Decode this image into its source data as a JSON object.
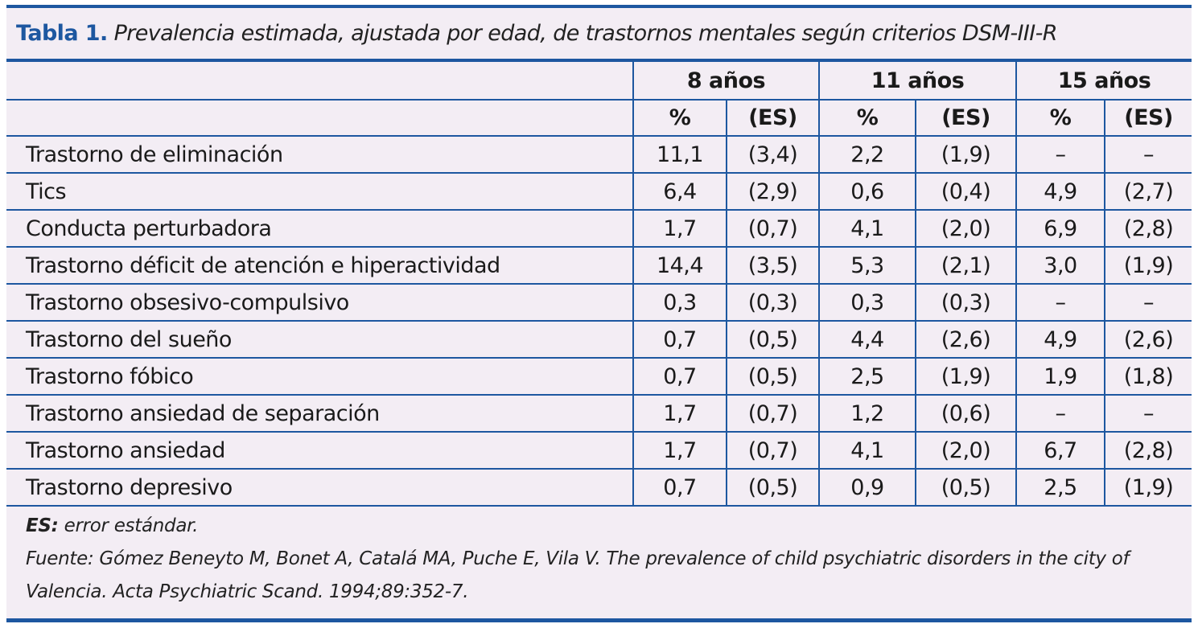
{
  "title": {
    "label": "Tabla 1.",
    "caption": "Prevalencia estimada, ajustada por edad, de trastornos mentales según criterios DSM-III-R"
  },
  "groups": [
    "8 años",
    "11 años",
    "15 años"
  ],
  "subheaders": [
    "%",
    "(ES)",
    "%",
    "(ES)",
    "%",
    "(ES)"
  ],
  "rows": [
    {
      "label": "Trastorno de eliminación",
      "values": [
        "11,1",
        "(3,4)",
        "2,2",
        "(1,9)",
        "–",
        "–"
      ]
    },
    {
      "label": "Tics",
      "values": [
        "6,4",
        "(2,9)",
        "0,6",
        "(0,4)",
        "4,9",
        "(2,7)"
      ]
    },
    {
      "label": "Conducta perturbadora",
      "values": [
        "1,7",
        "(0,7)",
        "4,1",
        "(2,0)",
        "6,9",
        "(2,8)"
      ]
    },
    {
      "label": "Trastorno déficit de atención e hiperactividad",
      "values": [
        "14,4",
        "(3,5)",
        "5,3",
        "(2,1)",
        "3,0",
        "(1,9)"
      ]
    },
    {
      "label": "Trastorno obsesivo-compulsivo",
      "values": [
        "0,3",
        "(0,3)",
        "0,3",
        "(0,3)",
        "–",
        "–"
      ]
    },
    {
      "label": "Trastorno del sueño",
      "values": [
        "0,7",
        "(0,5)",
        "4,4",
        "(2,6)",
        "4,9",
        "(2,6)"
      ]
    },
    {
      "label": "Trastorno fóbico",
      "values": [
        "0,7",
        "(0,5)",
        "2,5",
        "(1,9)",
        "1,9",
        "(1,8)"
      ]
    },
    {
      "label": "Trastorno ansiedad de separación",
      "values": [
        "1,7",
        "(0,7)",
        "1,2",
        "(0,6)",
        "–",
        "–"
      ]
    },
    {
      "label": "Trastorno ansiedad",
      "values": [
        "1,7",
        "(0,7)",
        "4,1",
        "(2,0)",
        "6,7",
        "(2,8)"
      ]
    },
    {
      "label": "Trastorno depresivo",
      "values": [
        "0,7",
        "(0,5)",
        "0,9",
        "(0,5)",
        "2,5",
        "(1,9)"
      ]
    }
  ],
  "notes": {
    "abbr": "ES:",
    "abbr_text": "error estándar.",
    "source": "Fuente: Gómez Beneyto M, Bonet A, Catalá MA, Puche E, Vila V. The prevalence of child psychiatric disorders in the city of Valencia. Acta Psychiatric Scand. 1994;89:352-7."
  },
  "colors": {
    "accent": "#1d57a0",
    "background": "#f3edf4"
  }
}
